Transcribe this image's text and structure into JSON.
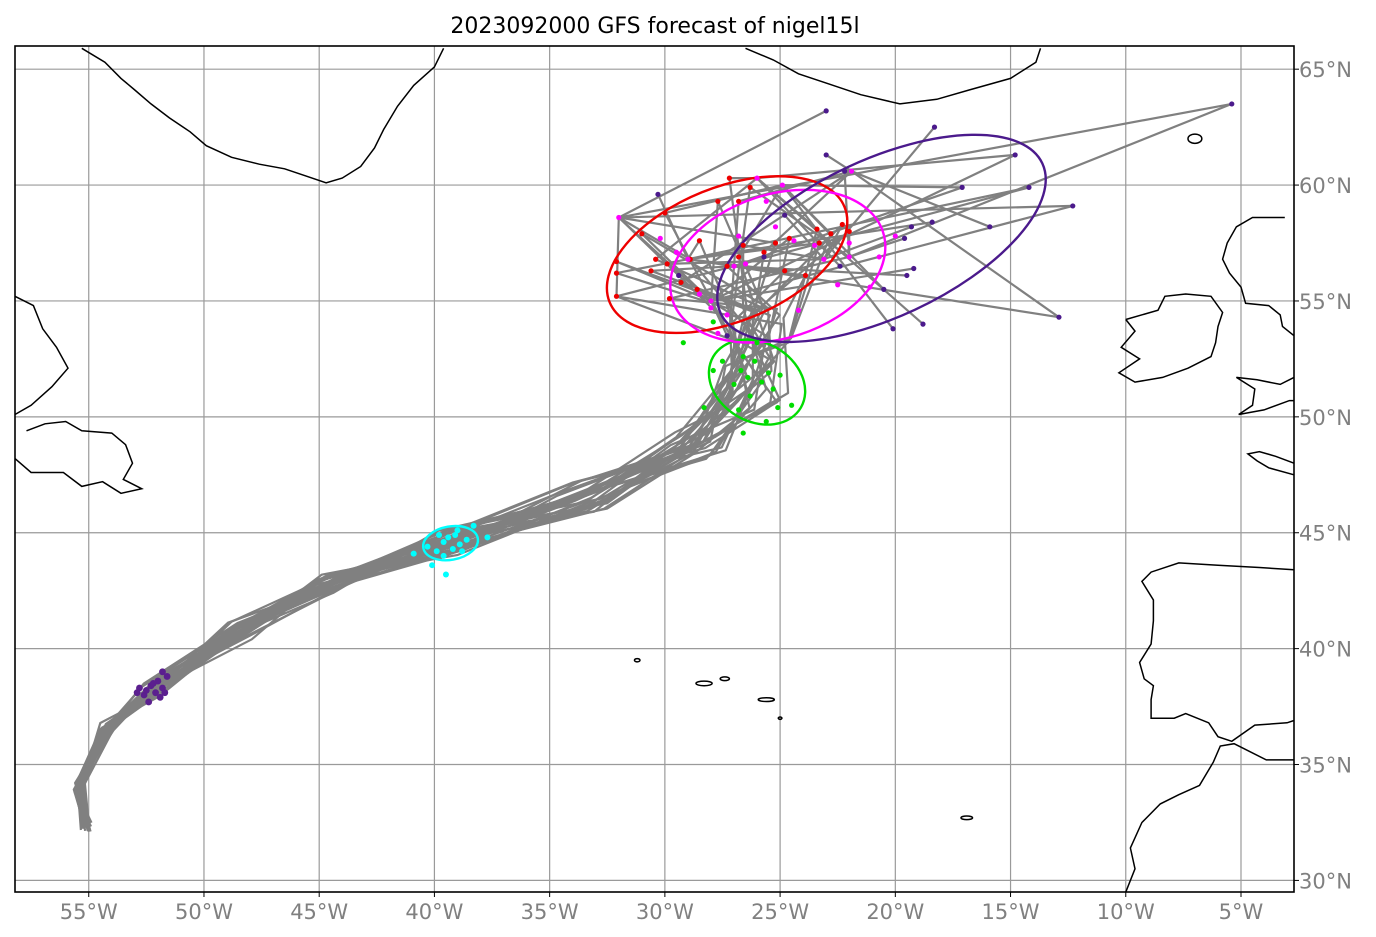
{
  "title": "2023092000 GFS forecast of nigel15l",
  "map": {
    "lon_range": [
      -58.2,
      -2.7
    ],
    "lat_range": [
      29.5,
      66.0
    ],
    "lon_ticks": [
      {
        "value": -55,
        "label": "55°W"
      },
      {
        "value": -50,
        "label": "50°W"
      },
      {
        "value": -45,
        "label": "45°W"
      },
      {
        "value": -40,
        "label": "40°W"
      },
      {
        "value": -35,
        "label": "35°W"
      },
      {
        "value": -30,
        "label": "30°W"
      },
      {
        "value": -25,
        "label": "25°W"
      },
      {
        "value": -20,
        "label": "20°W"
      },
      {
        "value": -15,
        "label": "15°W"
      },
      {
        "value": -10,
        "label": "10°W"
      },
      {
        "value": -5,
        "label": "5°W"
      }
    ],
    "lat_ticks": [
      {
        "value": 65,
        "label": "65°N"
      },
      {
        "value": 60,
        "label": "60°N"
      },
      {
        "value": 55,
        "label": "55°N"
      },
      {
        "value": 50,
        "label": "50°N"
      },
      {
        "value": 45,
        "label": "45°N"
      },
      {
        "value": 40,
        "label": "40°N"
      },
      {
        "value": 35,
        "label": "35°N"
      },
      {
        "value": 30,
        "label": "30°N"
      }
    ],
    "grid": true,
    "colors": {
      "track": "#808080",
      "grid": "#9a9a9a",
      "coast": "#000000",
      "t1": "#5b1f8f",
      "t2": "#00ffff",
      "t3": "#00dd00",
      "t4": "#ee0000",
      "t5": "#ff00ff",
      "t6": "#4b1a8c"
    },
    "ellipses": [
      {
        "color_key": "t2",
        "cx": -39.3,
        "cy": 44.55,
        "rx": 1.2,
        "ry": 0.72,
        "rot": -10
      },
      {
        "color_key": "t3",
        "cx": -26.0,
        "cy": 51.5,
        "rx": 2.2,
        "ry": 1.7,
        "rot": 30
      },
      {
        "color_key": "t4",
        "cx": -27.3,
        "cy": 57.0,
        "rx": 5.5,
        "ry": 2.9,
        "rot": -22
      },
      {
        "color_key": "t5",
        "cx": -25.1,
        "cy": 56.5,
        "rx": 4.8,
        "ry": 3.1,
        "rot": -18
      },
      {
        "color_key": "t6",
        "cx": -20.6,
        "cy": 57.7,
        "rx": 7.7,
        "ry": 3.4,
        "rot": -25
      }
    ]
  },
  "coastlines": [
    [
      [
        -55.3,
        65.9
      ],
      [
        -54.3,
        65.3
      ],
      [
        -53.6,
        64.6
      ],
      [
        -53.0,
        64.1
      ],
      [
        -52.3,
        63.5
      ],
      [
        -51.5,
        62.9
      ],
      [
        -50.6,
        62.3
      ],
      [
        -49.9,
        61.7
      ],
      [
        -48.8,
        61.2
      ],
      [
        -47.6,
        60.9
      ],
      [
        -46.5,
        60.7
      ],
      [
        -45.6,
        60.4
      ],
      [
        -44.7,
        60.1
      ],
      [
        -44.0,
        60.3
      ],
      [
        -43.2,
        60.8
      ],
      [
        -42.6,
        61.6
      ],
      [
        -42.2,
        62.4
      ],
      [
        -41.6,
        63.4
      ],
      [
        -40.9,
        64.3
      ],
      [
        -40.0,
        65.1
      ],
      [
        -39.6,
        65.9
      ]
    ],
    [
      [
        -26.5,
        65.9
      ],
      [
        -25.3,
        65.4
      ],
      [
        -24.2,
        64.8
      ],
      [
        -23.0,
        64.4
      ],
      [
        -21.5,
        63.9
      ],
      [
        -19.8,
        63.5
      ],
      [
        -18.2,
        63.7
      ],
      [
        -16.8,
        64.1
      ],
      [
        -15.0,
        64.6
      ],
      [
        -13.9,
        65.3
      ],
      [
        -13.7,
        65.9
      ]
    ],
    [
      [
        -58.2,
        55.2
      ],
      [
        -57.4,
        54.8
      ],
      [
        -57.0,
        53.8
      ],
      [
        -56.4,
        53.0
      ],
      [
        -55.9,
        52.1
      ],
      [
        -56.6,
        51.3
      ],
      [
        -57.5,
        50.5
      ],
      [
        -58.2,
        50.1
      ]
    ],
    [
      [
        -57.7,
        49.4
      ],
      [
        -56.9,
        49.7
      ],
      [
        -56.0,
        49.8
      ],
      [
        -55.3,
        49.4
      ],
      [
        -54.0,
        49.3
      ],
      [
        -53.4,
        48.8
      ],
      [
        -53.1,
        48.0
      ],
      [
        -53.5,
        47.3
      ],
      [
        -52.7,
        46.9
      ],
      [
        -53.6,
        46.7
      ],
      [
        -54.4,
        47.2
      ],
      [
        -55.3,
        47.0
      ],
      [
        -56.1,
        47.6
      ],
      [
        -57.5,
        47.6
      ],
      [
        -58.2,
        48.2
      ]
    ],
    [
      [
        -10.0,
        54.2
      ],
      [
        -9.6,
        53.7
      ],
      [
        -10.2,
        53.0
      ],
      [
        -9.4,
        52.5
      ],
      [
        -10.3,
        51.9
      ],
      [
        -9.6,
        51.5
      ],
      [
        -8.4,
        51.7
      ],
      [
        -7.3,
        52.1
      ],
      [
        -6.3,
        52.6
      ],
      [
        -6.1,
        53.2
      ],
      [
        -6.0,
        53.9
      ],
      [
        -5.8,
        54.5
      ],
      [
        -6.3,
        55.2
      ],
      [
        -7.4,
        55.3
      ],
      [
        -8.3,
        55.2
      ],
      [
        -8.6,
        54.6
      ],
      [
        -10.0,
        54.2
      ]
    ],
    [
      [
        -3.1,
        58.6
      ],
      [
        -4.5,
        58.6
      ],
      [
        -5.2,
        58.2
      ],
      [
        -5.6,
        57.5
      ],
      [
        -5.8,
        56.8
      ],
      [
        -5.5,
        56.2
      ],
      [
        -5.0,
        55.6
      ],
      [
        -4.8,
        54.9
      ],
      [
        -3.8,
        54.8
      ],
      [
        -3.3,
        54.4
      ],
      [
        -3.2,
        53.9
      ],
      [
        -2.7,
        53.5
      ]
    ],
    [
      [
        -2.7,
        51.7
      ],
      [
        -3.3,
        51.4
      ],
      [
        -4.3,
        51.6
      ],
      [
        -5.2,
        51.7
      ],
      [
        -4.4,
        51.2
      ],
      [
        -4.5,
        50.5
      ],
      [
        -5.1,
        50.1
      ],
      [
        -4.0,
        50.3
      ],
      [
        -2.9,
        50.7
      ],
      [
        -2.7,
        50.7
      ]
    ],
    [
      [
        -2.7,
        48.0
      ],
      [
        -3.5,
        48.3
      ],
      [
        -4.2,
        48.5
      ],
      [
        -4.7,
        48.4
      ],
      [
        -4.3,
        48.1
      ],
      [
        -3.8,
        47.8
      ],
      [
        -2.7,
        47.5
      ]
    ],
    [
      [
        -2.7,
        43.4
      ],
      [
        -4.2,
        43.5
      ],
      [
        -6.0,
        43.6
      ],
      [
        -7.7,
        43.7
      ],
      [
        -8.9,
        43.3
      ],
      [
        -9.3,
        42.9
      ],
      [
        -8.8,
        42.1
      ],
      [
        -8.8,
        41.2
      ],
      [
        -8.9,
        40.2
      ],
      [
        -9.4,
        39.4
      ],
      [
        -9.2,
        38.7
      ],
      [
        -8.8,
        38.4
      ],
      [
        -8.9,
        37.8
      ],
      [
        -8.9,
        37.0
      ],
      [
        -7.9,
        37.0
      ],
      [
        -7.4,
        37.2
      ],
      [
        -6.4,
        36.8
      ],
      [
        -6.0,
        36.2
      ],
      [
        -5.4,
        36.0
      ],
      [
        -4.4,
        36.7
      ],
      [
        -3.0,
        36.8
      ],
      [
        -2.7,
        36.9
      ]
    ],
    [
      [
        -2.7,
        35.2
      ],
      [
        -3.9,
        35.2
      ],
      [
        -5.3,
        35.9
      ],
      [
        -5.9,
        35.8
      ],
      [
        -6.2,
        35.1
      ],
      [
        -6.8,
        34.1
      ],
      [
        -7.7,
        33.7
      ],
      [
        -8.5,
        33.3
      ],
      [
        -9.3,
        32.5
      ],
      [
        -9.8,
        31.4
      ],
      [
        -9.6,
        30.5
      ],
      [
        -10.0,
        29.5
      ]
    ]
  ],
  "islands": [
    {
      "lon": -31.2,
      "lat": 39.5,
      "rx": 0.12,
      "ry": 0.07
    },
    {
      "lon": -28.3,
      "lat": 38.5,
      "rx": 0.35,
      "ry": 0.1
    },
    {
      "lon": -27.4,
      "lat": 38.7,
      "rx": 0.2,
      "ry": 0.08
    },
    {
      "lon": -25.6,
      "lat": 37.8,
      "rx": 0.35,
      "ry": 0.08
    },
    {
      "lon": -25.0,
      "lat": 37.0,
      "rx": 0.08,
      "ry": 0.05
    },
    {
      "lon": -16.9,
      "lat": 32.7,
      "rx": 0.25,
      "ry": 0.08
    },
    {
      "lon": -7.0,
      "lat": 62.0,
      "rx": 0.3,
      "ry": 0.2
    }
  ],
  "tracks": {
    "count": 31,
    "start": {
      "lon": -55.1,
      "lat": 32.3
    },
    "hour48": {
      "lon": -52.2,
      "lat": 38.2
    },
    "hour96": {
      "lon": -39.3,
      "lat": 44.55
    },
    "hour144": {
      "lon": -26.0,
      "lat": 51.5
    },
    "hour192_red": {
      "lon": -27.3,
      "lat": 57.0
    },
    "hour192_magenta": {
      "lon": -25.1,
      "lat": 56.5
    },
    "end_purple": {
      "lon": -20.6,
      "lat": 57.7
    }
  },
  "end_points": [
    {
      "lon": -5.4,
      "lat": 63.5
    },
    {
      "lon": -12.9,
      "lat": 54.3
    },
    {
      "lon": -12.3,
      "lat": 59.1
    },
    {
      "lon": -14.2,
      "lat": 59.9
    },
    {
      "lon": -14.8,
      "lat": 61.3
    },
    {
      "lon": -17.1,
      "lat": 59.9
    },
    {
      "lon": -18.3,
      "lat": 62.5
    },
    {
      "lon": -22.2,
      "lat": 60.6
    },
    {
      "lon": -23.0,
      "lat": 61.3
    },
    {
      "lon": -23.0,
      "lat": 63.2
    },
    {
      "lon": -18.4,
      "lat": 58.4
    },
    {
      "lon": -19.2,
      "lat": 56.4
    },
    {
      "lon": -19.5,
      "lat": 56.1
    },
    {
      "lon": -18.8,
      "lat": 54.0
    },
    {
      "lon": -20.1,
      "lat": 53.8
    },
    {
      "lon": -19.3,
      "lat": 58.2
    },
    {
      "lon": -19.6,
      "lat": 57.7
    },
    {
      "lon": -15.9,
      "lat": 58.2
    },
    {
      "lon": -29.4,
      "lat": 56.1
    },
    {
      "lon": -30.3,
      "lat": 59.6
    },
    {
      "lon": -27.3,
      "lat": 53.5
    },
    {
      "lon": -25.7,
      "lat": 56.9
    },
    {
      "lon": -22.4,
      "lat": 56.5
    },
    {
      "lon": -20.5,
      "lat": 55.5
    },
    {
      "lon": -24.8,
      "lat": 58.7
    }
  ],
  "red_points": [
    {
      "lon": -32.1,
      "lat": 55.2
    },
    {
      "lon": -32.1,
      "lat": 56.2
    },
    {
      "lon": -32.1,
      "lat": 56.7
    },
    {
      "lon": -30.6,
      "lat": 56.3
    },
    {
      "lon": -30.4,
      "lat": 56.8
    },
    {
      "lon": -30.0,
      "lat": 58.8
    },
    {
      "lon": -29.9,
      "lat": 56.6
    },
    {
      "lon": -29.8,
      "lat": 55.1
    },
    {
      "lon": -29.3,
      "lat": 55.8
    },
    {
      "lon": -28.9,
      "lat": 56.8
    },
    {
      "lon": -28.5,
      "lat": 57.6
    },
    {
      "lon": -27.7,
      "lat": 59.3
    },
    {
      "lon": -27.3,
      "lat": 56.5
    },
    {
      "lon": -27.2,
      "lat": 60.3
    },
    {
      "lon": -26.8,
      "lat": 56.9
    },
    {
      "lon": -26.6,
      "lat": 57.4
    },
    {
      "lon": -26.3,
      "lat": 59.9
    },
    {
      "lon": -25.7,
      "lat": 57.1
    },
    {
      "lon": -25.2,
      "lat": 57.5
    },
    {
      "lon": -24.8,
      "lat": 56.3
    },
    {
      "lon": -24.6,
      "lat": 57.7
    },
    {
      "lon": -23.9,
      "lat": 56.1
    },
    {
      "lon": -23.4,
      "lat": 58.1
    },
    {
      "lon": -22.8,
      "lat": 57.9
    },
    {
      "lon": -22.3,
      "lat": 58.3
    },
    {
      "lon": -22.0,
      "lat": 58.0
    },
    {
      "lon": -26.8,
      "lat": 59.3
    },
    {
      "lon": -28.6,
      "lat": 55.5
    },
    {
      "lon": -23.3,
      "lat": 57.5
    },
    {
      "lon": -31.0,
      "lat": 57.9
    }
  ],
  "magenta_points": [
    {
      "lon": -32.0,
      "lat": 58.6
    },
    {
      "lon": -30.2,
      "lat": 57.7
    },
    {
      "lon": -29.5,
      "lat": 57.1
    },
    {
      "lon": -29.0,
      "lat": 56.8
    },
    {
      "lon": -28.5,
      "lat": 55.3
    },
    {
      "lon": -28.0,
      "lat": 54.7
    },
    {
      "lon": -28.0,
      "lat": 55.0
    },
    {
      "lon": -27.7,
      "lat": 53.6
    },
    {
      "lon": -27.3,
      "lat": 54.4
    },
    {
      "lon": -27.0,
      "lat": 56.5
    },
    {
      "lon": -26.8,
      "lat": 57.8
    },
    {
      "lon": -26.5,
      "lat": 56.6
    },
    {
      "lon": -26.0,
      "lat": 60.3
    },
    {
      "lon": -25.6,
      "lat": 59.3
    },
    {
      "lon": -25.2,
      "lat": 58.2
    },
    {
      "lon": -24.9,
      "lat": 60.0
    },
    {
      "lon": -24.4,
      "lat": 57.6
    },
    {
      "lon": -23.5,
      "lat": 57.4
    },
    {
      "lon": -23.1,
      "lat": 56.8
    },
    {
      "lon": -22.5,
      "lat": 55.7
    },
    {
      "lon": -22.0,
      "lat": 57.5
    },
    {
      "lon": -22.0,
      "lat": 56.9
    },
    {
      "lon": -21.1,
      "lat": 55.6
    },
    {
      "lon": -20.7,
      "lat": 56.9
    },
    {
      "lon": -21.9,
      "lat": 60.6
    },
    {
      "lon": -20.0,
      "lat": 57.8
    },
    {
      "lon": -24.2,
      "lat": 54.6
    }
  ],
  "green_points": [
    {
      "lon": -28.3,
      "lat": 50.4
    },
    {
      "lon": -27.9,
      "lat": 54.1
    },
    {
      "lon": -27.9,
      "lat": 52.0
    },
    {
      "lon": -27.0,
      "lat": 51.4
    },
    {
      "lon": -26.7,
      "lat": 52.0
    },
    {
      "lon": -26.6,
      "lat": 52.6
    },
    {
      "lon": -26.4,
      "lat": 51.7
    },
    {
      "lon": -26.3,
      "lat": 50.9
    },
    {
      "lon": -26.1,
      "lat": 52.4
    },
    {
      "lon": -25.8,
      "lat": 51.5
    },
    {
      "lon": -25.5,
      "lat": 51.9
    },
    {
      "lon": -25.3,
      "lat": 51.2
    },
    {
      "lon": -25.0,
      "lat": 51.8
    },
    {
      "lon": -25.6,
      "lat": 49.8
    },
    {
      "lon": -26.0,
      "lat": 53.2
    },
    {
      "lon": -26.6,
      "lat": 49.3
    },
    {
      "lon": -24.5,
      "lat": 50.5
    },
    {
      "lon": -26.8,
      "lat": 50.3
    },
    {
      "lon": -27.5,
      "lat": 52.4
    },
    {
      "lon": -25.1,
      "lat": 50.4
    },
    {
      "lon": -29.2,
      "lat": 53.2
    }
  ],
  "cyan_points": [
    {
      "lon": -40.9,
      "lat": 44.1
    },
    {
      "lon": -40.1,
      "lat": 43.6
    },
    {
      "lon": -39.9,
      "lat": 44.2
    },
    {
      "lon": -39.6,
      "lat": 44.6
    },
    {
      "lon": -39.5,
      "lat": 43.2
    },
    {
      "lon": -39.4,
      "lat": 44.8
    },
    {
      "lon": -39.2,
      "lat": 44.3
    },
    {
      "lon": -39.1,
      "lat": 44.9
    },
    {
      "lon": -38.9,
      "lat": 44.5
    },
    {
      "lon": -38.6,
      "lat": 44.7
    },
    {
      "lon": -38.3,
      "lat": 45.3
    },
    {
      "lon": -37.7,
      "lat": 44.8
    },
    {
      "lon": -39.8,
      "lat": 44.9
    },
    {
      "lon": -38.8,
      "lat": 44.2
    },
    {
      "lon": -40.3,
      "lat": 44.4
    },
    {
      "lon": -39.0,
      "lat": 45.1
    },
    {
      "lon": -39.6,
      "lat": 44.0
    }
  ],
  "purple_start_points": [
    {
      "lon": -52.8,
      "lat": 38.3
    },
    {
      "lon": -52.6,
      "lat": 38.0
    },
    {
      "lon": -52.4,
      "lat": 37.7
    },
    {
      "lon": -52.3,
      "lat": 38.4
    },
    {
      "lon": -52.1,
      "lat": 38.1
    },
    {
      "lon": -52.0,
      "lat": 38.6
    },
    {
      "lon": -51.8,
      "lat": 38.3
    },
    {
      "lon": -51.6,
      "lat": 38.8
    },
    {
      "lon": -51.8,
      "lat": 39.0
    },
    {
      "lon": -52.5,
      "lat": 38.2
    },
    {
      "lon": -52.9,
      "lat": 38.1
    },
    {
      "lon": -51.9,
      "lat": 37.9
    },
    {
      "lon": -52.2,
      "lat": 38.5
    },
    {
      "lon": -51.7,
      "lat": 38.1
    }
  ]
}
